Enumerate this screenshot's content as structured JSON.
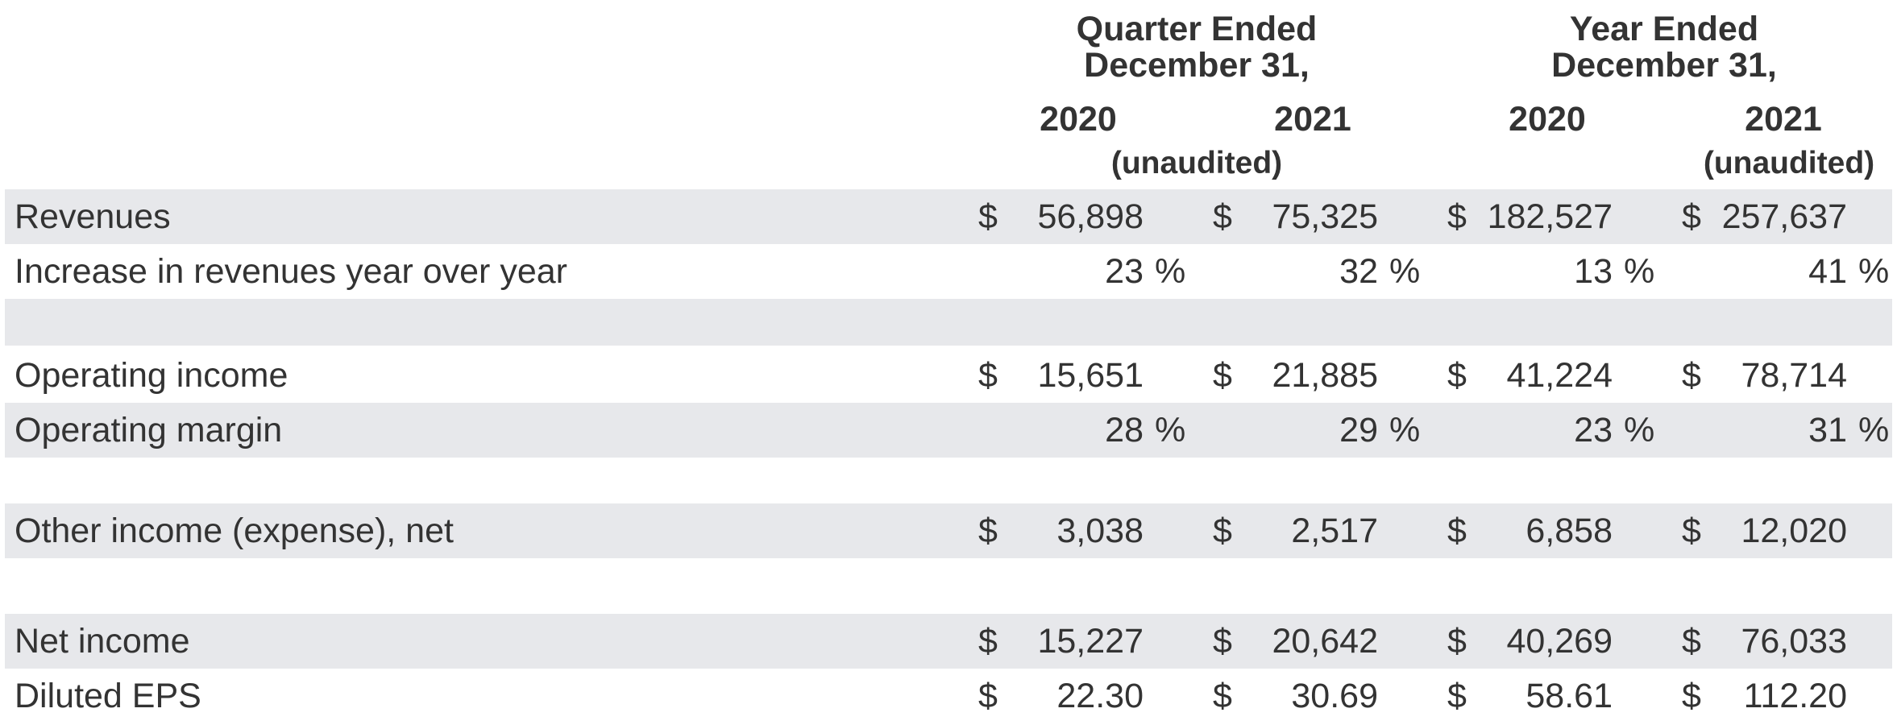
{
  "header": {
    "quarter_line1": "Quarter Ended",
    "quarter_line2": "December 31,",
    "year_line1": "Year Ended",
    "year_line2": "December 31,",
    "columns": [
      "2020",
      "2021",
      "2020",
      "2021"
    ],
    "unaudited_quarter": "(unaudited)",
    "unaudited_year": "(unaudited)"
  },
  "currency_symbol": "$",
  "percent_symbol": "%",
  "rows": {
    "revenues": {
      "label": "Revenues",
      "values": [
        "56,898",
        "75,325",
        "182,527",
        "257,637"
      ]
    },
    "revenue_growth": {
      "label": "Increase in revenues year over year",
      "values": [
        "23",
        "32",
        "13",
        "41"
      ]
    },
    "operating_income": {
      "label": "Operating income",
      "values": [
        "15,651",
        "21,885",
        "41,224",
        "78,714"
      ]
    },
    "operating_margin": {
      "label": "Operating margin",
      "values": [
        "28",
        "29",
        "23",
        "31"
      ]
    },
    "other_income": {
      "label": "Other income (expense), net",
      "values": [
        "3,038",
        "2,517",
        "6,858",
        "12,020"
      ]
    },
    "net_income": {
      "label": "Net income",
      "values": [
        "15,227",
        "20,642",
        "40,269",
        "76,033"
      ]
    },
    "diluted_eps": {
      "label": "Diluted EPS",
      "values": [
        "22.30",
        "30.69",
        "58.61",
        "112.20"
      ]
    }
  },
  "colors": {
    "shaded_row": "#e7e8eb",
    "text": "#333333"
  }
}
